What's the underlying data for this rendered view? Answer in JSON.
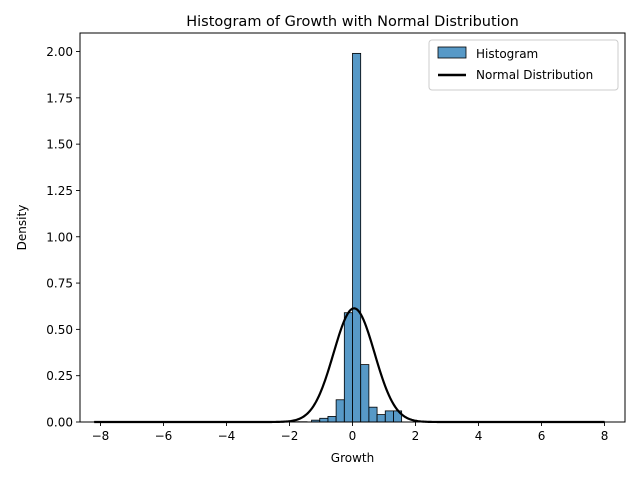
{
  "chart_data": {
    "type": "bar",
    "title": "Histogram of Growth with Normal Distribution",
    "xlabel": "Growth",
    "ylabel": "Density",
    "xlim": [
      -8.65,
      8.65
    ],
    "ylim": [
      0,
      2.1
    ],
    "x_ticks": [
      -8,
      -6,
      -4,
      -2,
      0,
      2,
      4,
      6,
      8
    ],
    "x_tick_labels": [
      "−8",
      "−6",
      "−4",
      "−2",
      "0",
      "2",
      "4",
      "6",
      "8"
    ],
    "y_ticks": [
      0,
      0.25,
      0.5,
      0.75,
      1.0,
      1.25,
      1.5,
      1.75,
      2.0
    ],
    "y_tick_labels": [
      "0.00",
      "0.25",
      "0.50",
      "0.75",
      "1.00",
      "1.25",
      "1.50",
      "1.75",
      "2.00"
    ],
    "grid": false,
    "legend_placement": "top-right",
    "series": [
      {
        "name": "Histogram",
        "kind": "histogram",
        "color": "#1f77b4",
        "edge_color": "#000000",
        "bin_edges": [
          -1.3,
          -1.04,
          -0.78,
          -0.52,
          -0.26,
          0.0,
          0.26,
          0.52,
          0.78,
          1.04,
          1.3,
          1.56,
          1.82
        ],
        "values": [
          0.01,
          0.02,
          0.03,
          0.12,
          0.59,
          1.99,
          0.31,
          0.08,
          0.04,
          0.06,
          0.06,
          0.0
        ],
        "tail_bins": {
          "start": -8.2,
          "end": 8.0,
          "value": 0.002
        }
      },
      {
        "name": "Normal Distribution",
        "kind": "line",
        "color": "#000000",
        "mean": 0.05,
        "std": 0.65,
        "x_range": [
          -8.2,
          8.0
        ]
      }
    ]
  }
}
